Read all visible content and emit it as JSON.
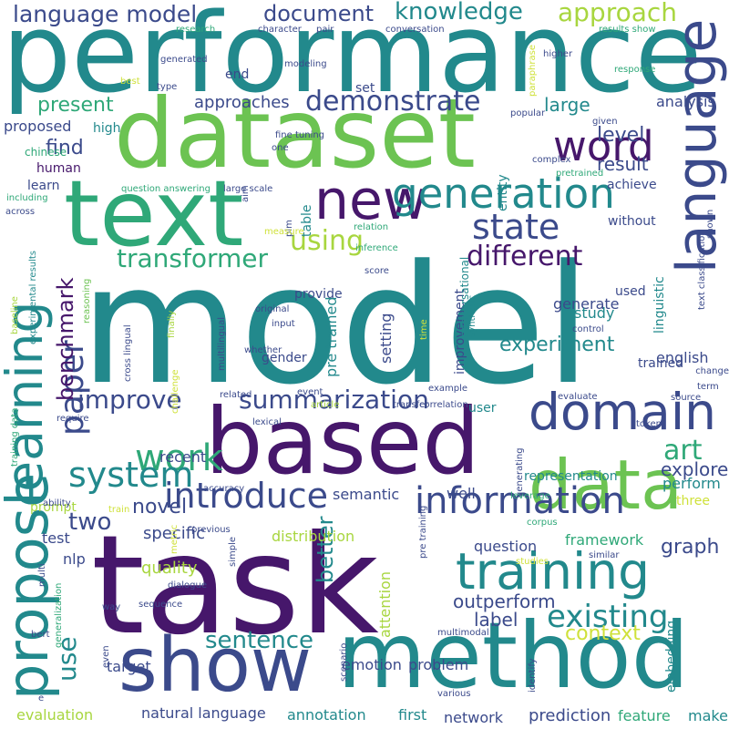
{
  "palette": {
    "purple": "#46176b",
    "indigo": "#3b4a8b",
    "blue": "#2f6a8e",
    "teal": "#22898c",
    "green": "#2fa878",
    "lime": "#6cc352",
    "yellowgreen": "#a8d63f",
    "yellow": "#cfe13a"
  },
  "words": [
    {
      "text": "model",
      "color": "teal"
    },
    {
      "text": "task",
      "color": "purple"
    },
    {
      "text": "performance",
      "color": "teal"
    },
    {
      "text": "dataset",
      "color": "lime"
    },
    {
      "text": "based",
      "color": "purple"
    },
    {
      "text": "method",
      "color": "teal"
    },
    {
      "text": "text",
      "color": "green"
    },
    {
      "text": "show",
      "color": "indigo"
    },
    {
      "text": "learning",
      "color": "teal"
    },
    {
      "text": "propose",
      "color": "teal"
    },
    {
      "text": "language",
      "color": "indigo"
    },
    {
      "text": "data",
      "color": "lime"
    },
    {
      "text": "domain",
      "color": "indigo"
    },
    {
      "text": "training",
      "color": "teal"
    },
    {
      "text": "new",
      "color": "purple"
    },
    {
      "text": "generation",
      "color": "teal"
    },
    {
      "text": "information",
      "color": "indigo"
    },
    {
      "text": "introduce",
      "color": "indigo"
    },
    {
      "text": "work",
      "color": "green"
    },
    {
      "text": "system",
      "color": "teal"
    },
    {
      "text": "state",
      "color": "indigo"
    },
    {
      "text": "word",
      "color": "purple"
    },
    {
      "text": "paper",
      "color": "indigo"
    },
    {
      "text": "existing",
      "color": "teal"
    },
    {
      "text": "summarization",
      "color": "indigo"
    },
    {
      "text": "knowledge",
      "color": "teal"
    },
    {
      "text": "document",
      "color": "indigo"
    },
    {
      "text": "language model",
      "color": "indigo"
    },
    {
      "text": "approach",
      "color": "yellowgreen"
    },
    {
      "text": "demonstrate",
      "color": "indigo"
    },
    {
      "text": "transformer",
      "color": "green"
    },
    {
      "text": "benchmark",
      "color": "purple"
    },
    {
      "text": "using",
      "color": "yellowgreen"
    },
    {
      "text": "different",
      "color": "purple"
    },
    {
      "text": "improve",
      "color": "indigo"
    },
    {
      "text": "art",
      "color": "green"
    },
    {
      "text": "use",
      "color": "teal"
    },
    {
      "text": "two",
      "color": "indigo"
    },
    {
      "text": "sentence",
      "color": "teal"
    },
    {
      "text": "experiment",
      "color": "teal"
    },
    {
      "text": "present",
      "color": "green"
    },
    {
      "text": "find",
      "color": "indigo"
    },
    {
      "text": "level",
      "color": "indigo"
    },
    {
      "text": "result",
      "color": "indigo"
    },
    {
      "text": "context",
      "color": "yellow"
    },
    {
      "text": "novel",
      "color": "indigo"
    },
    {
      "text": "graph",
      "color": "indigo"
    },
    {
      "text": "better",
      "color": "teal"
    },
    {
      "text": "explore",
      "color": "indigo"
    },
    {
      "text": "large",
      "color": "teal"
    },
    {
      "text": "proposed",
      "color": "indigo"
    },
    {
      "text": "approaches",
      "color": "indigo"
    },
    {
      "text": "analysis",
      "color": "indigo"
    },
    {
      "text": "specific",
      "color": "indigo"
    },
    {
      "text": "quality",
      "color": "yellowgreen"
    },
    {
      "text": "natural language",
      "color": "indigo"
    },
    {
      "text": "evaluation",
      "color": "yellowgreen"
    },
    {
      "text": "outperform",
      "color": "indigo"
    },
    {
      "text": "label",
      "color": "indigo"
    },
    {
      "text": "problem",
      "color": "indigo"
    },
    {
      "text": "emotion",
      "color": "indigo"
    },
    {
      "text": "target",
      "color": "indigo"
    },
    {
      "text": "prediction",
      "color": "indigo"
    },
    {
      "text": "network",
      "color": "indigo"
    },
    {
      "text": "first",
      "color": "teal"
    },
    {
      "text": "annotation",
      "color": "teal"
    },
    {
      "text": "feature",
      "color": "green"
    },
    {
      "text": "make",
      "color": "teal"
    },
    {
      "text": "question",
      "color": "indigo"
    },
    {
      "text": "framework",
      "color": "green"
    },
    {
      "text": "distribution",
      "color": "yellowgreen"
    },
    {
      "text": "recent",
      "color": "indigo"
    },
    {
      "text": "test",
      "color": "indigo"
    },
    {
      "text": "nlp",
      "color": "indigo"
    },
    {
      "text": "english",
      "color": "indigo"
    },
    {
      "text": "trained",
      "color": "indigo"
    },
    {
      "text": "semantic",
      "color": "indigo"
    },
    {
      "text": "well",
      "color": "indigo"
    },
    {
      "text": "perform",
      "color": "teal"
    },
    {
      "text": "three",
      "color": "yellow"
    },
    {
      "text": "embedding",
      "color": "teal"
    },
    {
      "text": "representation",
      "color": "teal"
    },
    {
      "text": "generate",
      "color": "indigo"
    },
    {
      "text": "study",
      "color": "teal"
    },
    {
      "text": "used",
      "color": "indigo"
    },
    {
      "text": "provide",
      "color": "indigo"
    },
    {
      "text": "human",
      "color": "purple"
    },
    {
      "text": "learn",
      "color": "indigo"
    },
    {
      "text": "high",
      "color": "teal"
    },
    {
      "text": "set",
      "color": "indigo"
    },
    {
      "text": "end",
      "color": "indigo"
    },
    {
      "text": "achieve",
      "color": "indigo"
    },
    {
      "text": "without",
      "color": "indigo"
    },
    {
      "text": "setting",
      "color": "indigo"
    },
    {
      "text": "gender",
      "color": "indigo"
    },
    {
      "text": "linguistic",
      "color": "teal"
    },
    {
      "text": "improvement",
      "color": "indigo"
    },
    {
      "text": "pre trained",
      "color": "teal"
    },
    {
      "text": "attention",
      "color": "yellowgreen"
    },
    {
      "text": "prompt",
      "color": "yellowgreen"
    },
    {
      "text": "user",
      "color": "teal"
    },
    {
      "text": "entity",
      "color": "teal"
    },
    {
      "text": "table",
      "color": "teal"
    },
    {
      "text": "conversational",
      "color": "teal"
    },
    {
      "text": "multilingual",
      "color": "indigo"
    },
    {
      "text": "cross lingual",
      "color": "indigo"
    },
    {
      "text": "chinese",
      "color": "green"
    },
    {
      "text": "question answering",
      "color": "green"
    },
    {
      "text": "including",
      "color": "green"
    },
    {
      "text": "across",
      "color": "indigo"
    },
    {
      "text": "research",
      "color": "green"
    },
    {
      "text": "character",
      "color": "indigo"
    },
    {
      "text": "pair",
      "color": "indigo"
    },
    {
      "text": "conversation",
      "color": "indigo"
    },
    {
      "text": "paraphrase",
      "color": "yellow"
    },
    {
      "text": "results show",
      "color": "green"
    },
    {
      "text": "higher",
      "color": "indigo"
    },
    {
      "text": "generated",
      "color": "indigo"
    },
    {
      "text": "best",
      "color": "yellow"
    },
    {
      "text": "modeling",
      "color": "indigo"
    },
    {
      "text": "type",
      "color": "indigo"
    },
    {
      "text": "response",
      "color": "green"
    },
    {
      "text": "popular",
      "color": "indigo"
    },
    {
      "text": "given",
      "color": "indigo"
    },
    {
      "text": "fine tuning",
      "color": "indigo"
    },
    {
      "text": "one",
      "color": "indigo"
    },
    {
      "text": "aim",
      "color": "indigo"
    },
    {
      "text": "complex",
      "color": "indigo"
    },
    {
      "text": "pretrained",
      "color": "green"
    },
    {
      "text": "shown",
      "color": "indigo"
    },
    {
      "text": "text classification",
      "color": "indigo"
    },
    {
      "text": "large scale",
      "color": "indigo"
    },
    {
      "text": "plm",
      "color": "indigo"
    },
    {
      "text": "measure",
      "color": "yellow"
    },
    {
      "text": "relation",
      "color": "green"
    },
    {
      "text": "inference",
      "color": "green"
    },
    {
      "text": "score",
      "color": "indigo"
    },
    {
      "text": "baseline",
      "color": "yellowgreen"
    },
    {
      "text": "reasoning",
      "color": "lime"
    },
    {
      "text": "experimental results",
      "color": "teal"
    },
    {
      "text": "original",
      "color": "indigo"
    },
    {
      "text": "input",
      "color": "indigo"
    },
    {
      "text": "whether",
      "color": "indigo"
    },
    {
      "text": "finally",
      "color": "yellowgreen"
    },
    {
      "text": "time",
      "color": "yellow"
    },
    {
      "text": "synthetic",
      "color": "teal"
    },
    {
      "text": "control",
      "color": "indigo"
    },
    {
      "text": "change",
      "color": "indigo"
    },
    {
      "text": "term",
      "color": "indigo"
    },
    {
      "text": "source",
      "color": "indigo"
    },
    {
      "text": "token",
      "color": "indigo"
    },
    {
      "text": "evaluate",
      "color": "indigo"
    },
    {
      "text": "example",
      "color": "indigo"
    },
    {
      "text": "correlation",
      "color": "indigo"
    },
    {
      "text": "transfer",
      "color": "indigo"
    },
    {
      "text": "article",
      "color": "yellowgreen"
    },
    {
      "text": "lexical",
      "color": "indigo"
    },
    {
      "text": "event",
      "color": "indigo"
    },
    {
      "text": "related",
      "color": "indigo"
    },
    {
      "text": "challenge",
      "color": "yellow"
    },
    {
      "text": "require",
      "color": "indigo"
    },
    {
      "text": "training data",
      "color": "green"
    },
    {
      "text": "ability",
      "color": "indigo"
    },
    {
      "text": "accuracy",
      "color": "indigo"
    },
    {
      "text": "train",
      "color": "yellow"
    },
    {
      "text": "previous",
      "color": "indigo"
    },
    {
      "text": "multi",
      "color": "indigo"
    },
    {
      "text": "metric",
      "color": "yellow"
    },
    {
      "text": "simple",
      "color": "indigo"
    },
    {
      "text": "dialogue",
      "color": "indigo"
    },
    {
      "text": "sequence",
      "color": "indigo"
    },
    {
      "text": "way",
      "color": "indigo"
    },
    {
      "text": "generalization",
      "color": "green"
    },
    {
      "text": "bert",
      "color": "indigo"
    },
    {
      "text": "even",
      "color": "indigo"
    },
    {
      "text": "e",
      "color": "indigo"
    },
    {
      "text": "scenario",
      "color": "indigo"
    },
    {
      "text": "various",
      "color": "indigo"
    },
    {
      "text": "identify",
      "color": "indigo"
    },
    {
      "text": "generating",
      "color": "indigo"
    },
    {
      "text": "pre training",
      "color": "indigo"
    },
    {
      "text": "corpus",
      "color": "green"
    },
    {
      "text": "leverage",
      "color": "green"
    },
    {
      "text": "studies",
      "color": "yellow"
    },
    {
      "text": "similar",
      "color": "indigo"
    },
    {
      "text": "multimodal",
      "color": "indigo"
    }
  ]
}
